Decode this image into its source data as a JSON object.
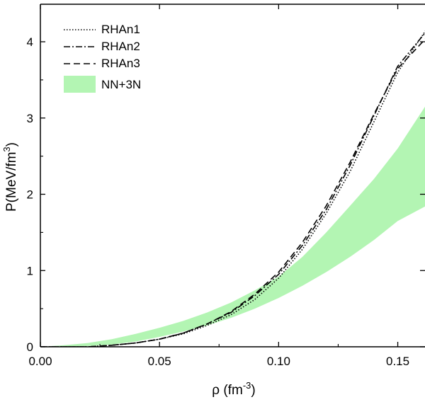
{
  "chart_data": {
    "type": "line",
    "xlabel": "ρ (fm",
    "xlabel_sup": "-3",
    "xlabel_end": ")",
    "ylabel": "P(MeV/fm",
    "ylabel_sup": "3",
    "ylabel_end": ")",
    "xlim": [
      0.0,
      0.165
    ],
    "ylim": [
      0,
      4.45
    ],
    "x_ticks": [
      0.0,
      0.05,
      0.1,
      0.15
    ],
    "x_tick_labels": [
      "0.00",
      "0.05",
      "0.10",
      "0.15"
    ],
    "y_ticks": [
      0,
      1,
      2,
      3,
      4
    ],
    "y_tick_labels": [
      "0",
      "1",
      "2",
      "3",
      "4"
    ],
    "legend_position": "top-left",
    "band": {
      "name": "NN+3N",
      "color": "#b3f5b3",
      "x": [
        0.0,
        0.01,
        0.02,
        0.03,
        0.04,
        0.05,
        0.06,
        0.07,
        0.08,
        0.09,
        0.1,
        0.11,
        0.12,
        0.13,
        0.14,
        0.15,
        0.165
      ],
      "upper": [
        0.0,
        0.02,
        0.05,
        0.1,
        0.17,
        0.25,
        0.34,
        0.45,
        0.58,
        0.74,
        0.92,
        1.18,
        1.5,
        1.85,
        2.2,
        2.6,
        3.32
      ],
      "lower": [
        0.0,
        0.0,
        0.01,
        0.03,
        0.07,
        0.13,
        0.2,
        0.28,
        0.38,
        0.5,
        0.64,
        0.8,
        0.98,
        1.18,
        1.4,
        1.65,
        1.9
      ]
    },
    "series": [
      {
        "name": "RHAn1",
        "dash": "dotted",
        "x": [
          0.0,
          0.02,
          0.03,
          0.04,
          0.05,
          0.06,
          0.07,
          0.08,
          0.09,
          0.1,
          0.11,
          0.12,
          0.13,
          0.14,
          0.15,
          0.165
        ],
        "y": [
          0.0,
          0.0,
          0.02,
          0.05,
          0.1,
          0.17,
          0.28,
          0.42,
          0.62,
          0.9,
          1.28,
          1.75,
          2.3,
          2.95,
          3.6,
          4.3
        ]
      },
      {
        "name": "RHAn2",
        "dash": "dashdot",
        "x": [
          0.0,
          0.02,
          0.03,
          0.04,
          0.05,
          0.06,
          0.07,
          0.08,
          0.09,
          0.1,
          0.11,
          0.12,
          0.13,
          0.14,
          0.15,
          0.165
        ],
        "y": [
          0.0,
          0.0,
          0.02,
          0.05,
          0.1,
          0.18,
          0.3,
          0.45,
          0.67,
          0.95,
          1.33,
          1.8,
          2.38,
          3.03,
          3.68,
          4.25
        ]
      },
      {
        "name": "RHAn3",
        "dash": "dashed",
        "x": [
          0.0,
          0.02,
          0.03,
          0.04,
          0.05,
          0.06,
          0.07,
          0.08,
          0.09,
          0.1,
          0.11,
          0.12,
          0.13,
          0.14,
          0.15,
          0.165
        ],
        "y": [
          0.0,
          0.0,
          0.02,
          0.05,
          0.1,
          0.18,
          0.3,
          0.46,
          0.69,
          0.98,
          1.37,
          1.85,
          2.42,
          3.05,
          3.65,
          4.15
        ]
      }
    ]
  }
}
